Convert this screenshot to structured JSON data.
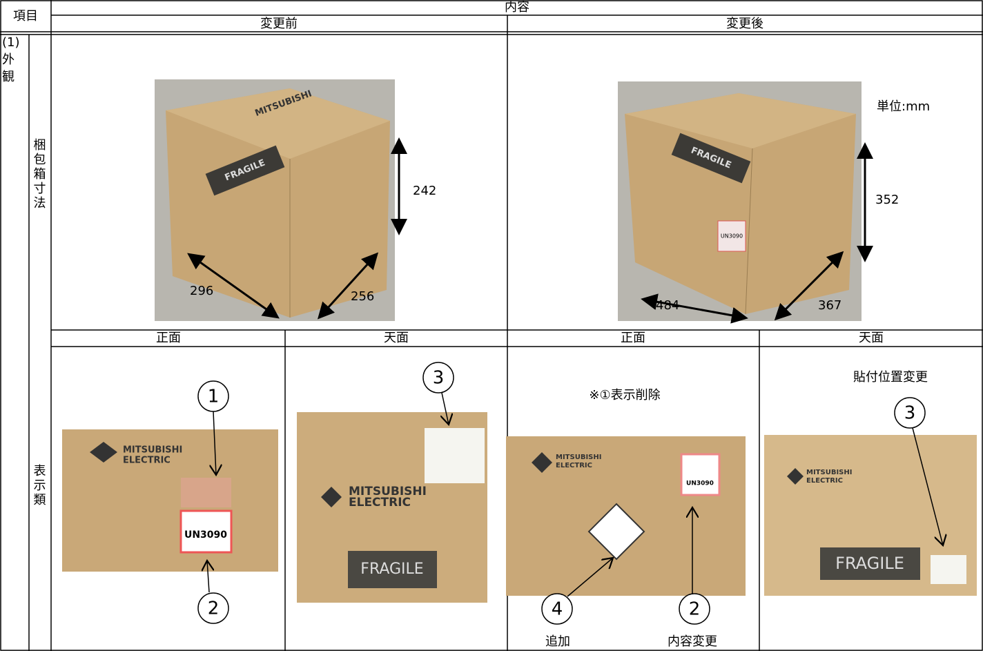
{
  "header": {
    "item": "項目",
    "content": "内容",
    "before": "変更前",
    "after": "変更後"
  },
  "section": {
    "label_lines": [
      "(1)",
      "外",
      "観"
    ]
  },
  "package": {
    "label": "梱包箱寸法",
    "unit": "単位:mm",
    "before": {
      "height": "242",
      "width": "296",
      "depth": "256"
    },
    "after": {
      "height": "352",
      "width": "484",
      "depth": "367"
    }
  },
  "display": {
    "label": "表示類",
    "views": [
      "正面",
      "天面",
      "正面",
      "天面"
    ],
    "callouts": [
      "1",
      "2",
      "3",
      "4",
      "2",
      "3"
    ],
    "notes": {
      "delete": "※①表示削除",
      "reposition": "貼付位置変更",
      "added": "追加",
      "changed": "内容変更"
    }
  },
  "photo_text": {
    "brand": [
      "MITSUBISHI",
      "ELECTRIC"
    ],
    "fragile": "FRAGILE",
    "un": "UN3090"
  }
}
